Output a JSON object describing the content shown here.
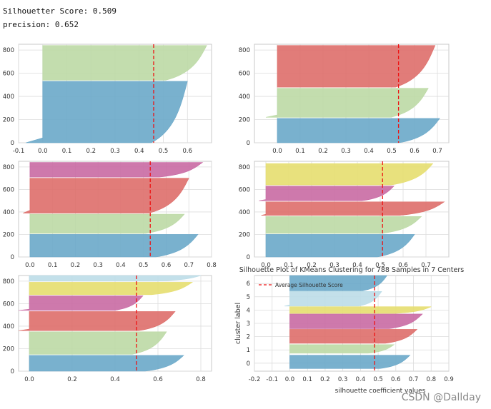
{
  "header": {
    "silhouette_score": "Silhouetter Score: 0.509",
    "precision": "precision: 0.652"
  },
  "watermark": "CSDN @Dallday",
  "colors": {
    "blue": "#6aa8c9",
    "green": "#bcd9a5",
    "red": "#de6e6a",
    "pink": "#c96aa3",
    "yellow": "#e6de6f",
    "lightblue": "#bcdde8",
    "avg_line": "#ee1111",
    "grid": "#dcdcdc",
    "frame": "#c8c8c8"
  },
  "chart_data": [
    {
      "type": "silhouette",
      "title": "",
      "xlim": [
        -0.1,
        0.7
      ],
      "ylim": [
        0,
        850
      ],
      "xticks": [
        "-0.1",
        "0.0",
        "0.1",
        "0.2",
        "0.3",
        "0.4",
        "0.5",
        "0.6"
      ],
      "xtick_values": [
        -0.1,
        0.0,
        0.1,
        0.2,
        0.3,
        0.4,
        0.5,
        0.6
      ],
      "yticks": [
        0,
        200,
        400,
        600,
        800
      ],
      "avg": 0.46,
      "clusters": [
        {
          "color": "blue",
          "y0": 0,
          "y1": 530,
          "min": -0.07,
          "max": 0.6
        },
        {
          "color": "green",
          "y0": 540,
          "y1": 840,
          "min": 0.0,
          "max": 0.68
        }
      ]
    },
    {
      "type": "silhouette",
      "title": "",
      "xlim": [
        -0.1,
        0.75
      ],
      "ylim": [
        0,
        850
      ],
      "xticks": [
        "0.0",
        "0.1",
        "0.2",
        "0.3",
        "0.4",
        "0.5",
        "0.6",
        "0.7"
      ],
      "xtick_values": [
        0.0,
        0.1,
        0.2,
        0.3,
        0.4,
        0.5,
        0.6,
        0.7
      ],
      "yticks": [
        0,
        200,
        400,
        600,
        800
      ],
      "avg": 0.53,
      "clusters": [
        {
          "color": "blue",
          "y0": 0,
          "y1": 210,
          "min": 0.0,
          "max": 0.71
        },
        {
          "color": "green",
          "y0": 220,
          "y1": 470,
          "min": -0.05,
          "max": 0.66
        },
        {
          "color": "red",
          "y0": 480,
          "y1": 840,
          "min": 0.0,
          "max": 0.69
        }
      ]
    },
    {
      "type": "silhouette",
      "title": "",
      "xlim": [
        -0.05,
        0.8
      ],
      "ylim": [
        0,
        850
      ],
      "xticks": [
        "0.0",
        "0.1",
        "0.2",
        "0.3",
        "0.4",
        "0.5",
        "0.6",
        "0.7",
        "0.8"
      ],
      "xtick_values": [
        0.0,
        0.1,
        0.2,
        0.3,
        0.4,
        0.5,
        0.6,
        0.7,
        0.8
      ],
      "yticks": [
        0,
        200,
        400,
        600,
        800
      ],
      "avg": 0.53,
      "clusters": [
        {
          "color": "blue",
          "y0": 0,
          "y1": 200,
          "min": 0.0,
          "max": 0.74
        },
        {
          "color": "green",
          "y0": 210,
          "y1": 380,
          "min": 0.0,
          "max": 0.68
        },
        {
          "color": "red",
          "y0": 390,
          "y1": 700,
          "min": -0.03,
          "max": 0.7
        },
        {
          "color": "pink",
          "y0": 710,
          "y1": 840,
          "min": 0.0,
          "max": 0.76
        }
      ]
    },
    {
      "type": "silhouette",
      "title": "",
      "xlim": [
        -0.05,
        0.8
      ],
      "ylim": [
        0,
        850
      ],
      "xticks": [
        "0.0",
        "0.1",
        "0.2",
        "0.3",
        "0.4",
        "0.5",
        "0.6",
        "0.7"
      ],
      "xtick_values": [
        0.0,
        0.1,
        0.2,
        0.3,
        0.4,
        0.5,
        0.6,
        0.7
      ],
      "yticks": [
        0,
        200,
        400,
        600,
        800
      ],
      "avg": 0.51,
      "clusters": [
        {
          "color": "blue",
          "y0": 0,
          "y1": 200,
          "min": 0.0,
          "max": 0.65
        },
        {
          "color": "green",
          "y0": 210,
          "y1": 360,
          "min": 0.0,
          "max": 0.68
        },
        {
          "color": "red",
          "y0": 370,
          "y1": 490,
          "min": -0.02,
          "max": 0.78
        },
        {
          "color": "pink",
          "y0": 500,
          "y1": 630,
          "min": -0.03,
          "max": 0.56
        },
        {
          "color": "yellow",
          "y0": 640,
          "y1": 830,
          "min": 0.0,
          "max": 0.73
        }
      ]
    },
    {
      "type": "silhouette",
      "title": "",
      "xlim": [
        -0.05,
        0.85
      ],
      "ylim": [
        0,
        850
      ],
      "xticks": [
        "0.0",
        "0.2",
        "0.4",
        "0.6",
        "0.8"
      ],
      "xtick_values": [
        0.0,
        0.2,
        0.4,
        0.6,
        0.8
      ],
      "yticks": [
        0,
        200,
        400,
        600,
        800
      ],
      "avg": 0.5,
      "clusters": [
        {
          "color": "blue",
          "y0": 0,
          "y1": 140,
          "min": 0.0,
          "max": 0.72
        },
        {
          "color": "green",
          "y0": 150,
          "y1": 350,
          "min": 0.0,
          "max": 0.64
        },
        {
          "color": "red",
          "y0": 360,
          "y1": 530,
          "min": -0.05,
          "max": 0.68
        },
        {
          "color": "pink",
          "y0": 540,
          "y1": 670,
          "min": -0.05,
          "max": 0.53
        },
        {
          "color": "yellow",
          "y0": 680,
          "y1": 790,
          "min": 0.0,
          "max": 0.76
        },
        {
          "color": "lightblue",
          "y0": 800,
          "y1": 850,
          "min": 0.0,
          "max": 0.8
        }
      ]
    },
    {
      "type": "silhouette",
      "title": "Silhouette Plot of KMeans Clustering for 788 Samples in 7 Centers",
      "xlabel": "silhouette coefficient values",
      "ylabel": "cluster label",
      "legend": "Average Silhouette Score",
      "legend_position": "top-left",
      "xlim": [
        -0.2,
        0.9
      ],
      "ylim": [
        -0.6,
        6.6
      ],
      "xticks": [
        "-0.2",
        "-0.1",
        "0.0",
        "0.1",
        "0.2",
        "0.3",
        "0.4",
        "0.5",
        "0.6",
        "0.7",
        "0.8",
        "0.9"
      ],
      "xtick_values": [
        -0.2,
        -0.1,
        0.0,
        0.1,
        0.2,
        0.3,
        0.4,
        0.5,
        0.6,
        0.7,
        0.8,
        0.9
      ],
      "yticks": [
        0,
        1,
        2,
        3,
        4,
        5,
        6
      ],
      "avg": 0.48,
      "clusters": [
        {
          "color": "blue",
          "y0": -0.4,
          "y1": 0.6,
          "min": 0.0,
          "max": 0.68
        },
        {
          "color": "green",
          "y0": 0.75,
          "y1": 1.4,
          "min": 0.0,
          "max": 0.59
        },
        {
          "color": "red",
          "y0": 1.5,
          "y1": 2.55,
          "min": 0.0,
          "max": 0.72
        },
        {
          "color": "pink",
          "y0": 2.6,
          "y1": 3.7,
          "min": 0.0,
          "max": 0.75
        },
        {
          "color": "yellow",
          "y0": 3.75,
          "y1": 4.25,
          "min": 0.0,
          "max": 0.8
        },
        {
          "color": "lightblue",
          "y0": 4.3,
          "y1": 5.4,
          "min": -0.03,
          "max": 0.52
        },
        {
          "color": "blue",
          "y0": 5.45,
          "y1": 6.6,
          "min": 0.0,
          "max": 0.55
        }
      ]
    }
  ]
}
